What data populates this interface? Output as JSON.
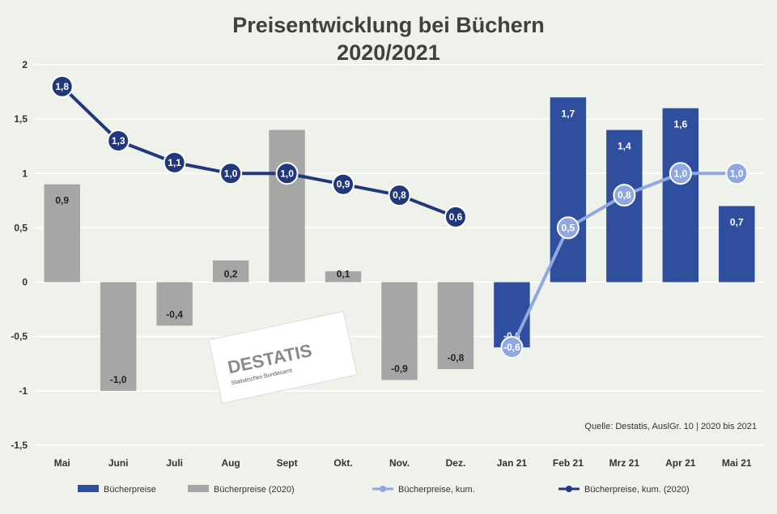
{
  "title_line1": "Preisentwicklung bei Büchern",
  "title_line2": "2020/2021",
  "source_note": "Quelle: Destatis, AuslGr. 10 | 2020 bis 2021",
  "logo_text": "DESTATIS",
  "logo_sub": "Statistisches Bundesamt",
  "colors": {
    "background": "#eef2ea",
    "gray_bar": "#a6a6a6",
    "blue_bar": "#2f4f9e",
    "dark_line": "#23387a",
    "light_line": "#8fa8e0",
    "grid": "#ffffff"
  },
  "chart_data": {
    "type": "bar",
    "categories": [
      "Mai",
      "Juni",
      "Juli",
      "Aug",
      "Sept",
      "Okt.",
      "Nov.",
      "Dez.",
      "Jan 21",
      "Feb 21",
      "Mrz 21",
      "Apr 21",
      "Mai 21"
    ],
    "ylim": [
      -1.5,
      2
    ],
    "yticks": [
      "2",
      "1,5",
      "1",
      "0,5",
      "0",
      "-0,5",
      "-1",
      "-1,5"
    ],
    "grid": true,
    "legend_position": "bottom",
    "series": [
      {
        "name": "Bücherpreise",
        "kind": "bar",
        "color": "#2f4f9e",
        "values": [
          null,
          null,
          null,
          null,
          null,
          null,
          null,
          null,
          -0.6,
          1.7,
          1.4,
          1.6,
          0.7
        ],
        "labels": [
          "",
          "",
          "",
          "",
          "",
          "",
          "",
          "",
          "-0,6",
          "1,7",
          "1,4",
          "1,6",
          "0,7"
        ]
      },
      {
        "name": "Bücherpreise (2020)",
        "kind": "bar",
        "color": "#a6a6a6",
        "values": [
          0.9,
          -1.0,
          -0.4,
          0.2,
          1.4,
          0.1,
          -0.9,
          -0.8,
          null,
          null,
          null,
          null,
          null
        ],
        "labels": [
          "0,9",
          "-1,0",
          "-0,4",
          "0,2",
          "",
          "0,1",
          "-0,9",
          "-0,8",
          "",
          "",
          "",
          "",
          ""
        ]
      },
      {
        "name": "Bücherpreise, kum.",
        "kind": "line",
        "color": "#8fa8e0",
        "values": [
          null,
          null,
          null,
          null,
          null,
          null,
          null,
          null,
          -0.6,
          0.5,
          0.8,
          1.0,
          1.0
        ],
        "labels": [
          "",
          "",
          "",
          "",
          "",
          "",
          "",
          "",
          "-0,6",
          "0,5",
          "0,8",
          "1,0",
          "1,0"
        ]
      },
      {
        "name": "Bücherpreise, kum. (2020)",
        "kind": "line",
        "color": "#23387a",
        "values": [
          1.8,
          1.3,
          1.1,
          1.0,
          1.0,
          0.9,
          0.8,
          0.6,
          null,
          null,
          null,
          null,
          null
        ],
        "labels": [
          "1,8",
          "1,3",
          "1,1",
          "1,0",
          "1,0",
          "0,9",
          "0,8",
          "0,6",
          "",
          "",
          "",
          "",
          ""
        ]
      }
    ]
  }
}
